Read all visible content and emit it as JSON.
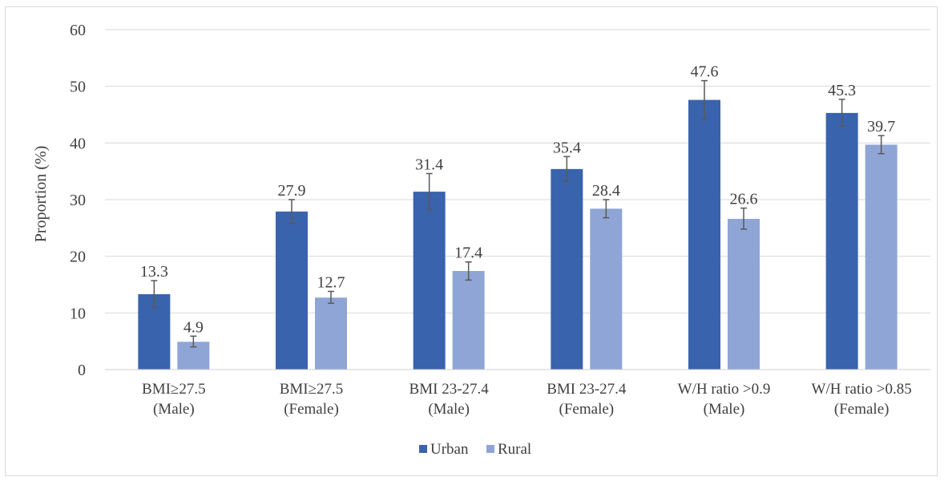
{
  "chart_data": {
    "type": "bar",
    "ylabel": "Proportion (%)",
    "ylim": [
      0,
      60
    ],
    "yticks": [
      0,
      10,
      20,
      30,
      40,
      50,
      60
    ],
    "grid": true,
    "legend_position": "bottom",
    "categories": [
      [
        "BMI≥27.5",
        "(Male)"
      ],
      [
        "BMI≥27.5",
        "(Female)"
      ],
      [
        "BMI 23-27.4",
        "(Male)"
      ],
      [
        "BMI 23-27.4",
        "(Female)"
      ],
      [
        "W/H ratio >0.9",
        "(Male)"
      ],
      [
        "W/H ratio >0.85",
        "(Female)"
      ]
    ],
    "series": [
      {
        "name": "Urban",
        "color": "#3a63ad",
        "values": [
          13.3,
          27.9,
          31.4,
          35.4,
          47.6,
          45.3
        ],
        "labels": [
          "13.3",
          "27.9",
          "31.4",
          "35.4",
          "47.6",
          "45.3"
        ],
        "error": [
          [
            11.0,
            15.7
          ],
          [
            25.8,
            30.0
          ],
          [
            28.3,
            34.6
          ],
          [
            33.2,
            37.6
          ],
          [
            44.2,
            51.0
          ],
          [
            43.0,
            47.7
          ]
        ]
      },
      {
        "name": "Rural",
        "color": "#8fa5d6",
        "values": [
          4.9,
          12.7,
          17.4,
          28.4,
          26.6,
          39.7
        ],
        "labels": [
          "4.9",
          "12.7",
          "17.4",
          "28.4",
          "26.6",
          "39.7"
        ],
        "error": [
          [
            4.0,
            5.9
          ],
          [
            11.7,
            13.8
          ],
          [
            15.8,
            19.0
          ],
          [
            26.8,
            30.0
          ],
          [
            24.8,
            28.5
          ],
          [
            38.1,
            41.3
          ]
        ]
      }
    ]
  }
}
